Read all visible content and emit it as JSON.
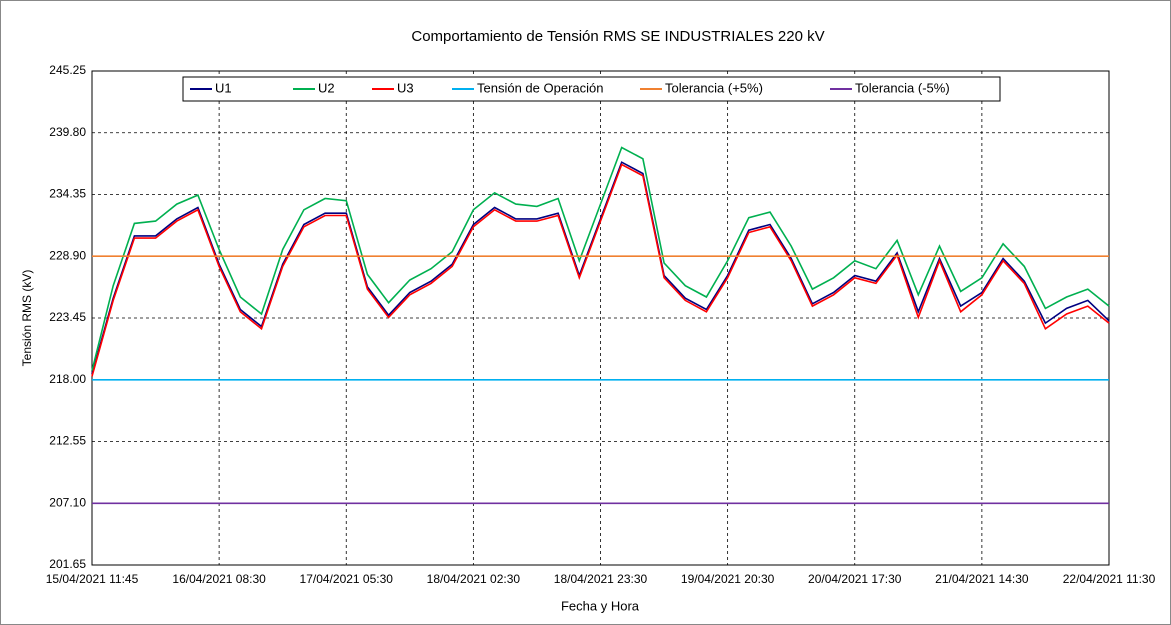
{
  "chart_data": {
    "type": "line",
    "title": "Comportamiento de Tensión RMS  SE INDUSTRIALES 220 kV",
    "x_label": "Fecha y Hora",
    "y_label": "Tensión RMS (kV)",
    "categories": [
      "15/04/2021 11:45",
      null,
      null,
      null,
      null,
      null,
      "16/04/2021 08:30",
      null,
      null,
      null,
      null,
      null,
      "17/04/2021 05:30",
      null,
      null,
      null,
      null,
      null,
      "18/04/2021 02:30",
      null,
      null,
      null,
      null,
      null,
      "18/04/2021 23:30",
      null,
      null,
      null,
      null,
      null,
      "19/04/2021 20:30",
      null,
      null,
      null,
      null,
      null,
      "20/04/2021 17:30",
      null,
      null,
      null,
      null,
      null,
      "21/04/2021 14:30",
      null,
      null,
      null,
      null,
      null,
      "22/04/2021 11:30"
    ],
    "ylim": [
      201.65,
      245.25
    ],
    "yticks": [
      201.65,
      {
        "value": 207.1,
        "label": "207.10"
      },
      212.55,
      {
        "value": 218,
        "label": "218.00"
      },
      223.45,
      {
        "value": 228.9,
        "label": "228.90"
      },
      234.35,
      {
        "value": 239.8,
        "label": "239.80"
      },
      245.25
    ],
    "grid": true,
    "legend": "top",
    "series": [
      {
        "name": "U1",
        "color": "#000080",
        "values": [
          218.5,
          225.2,
          230.7,
          230.7,
          232.2,
          233.2,
          228.2,
          224.2,
          222.7,
          228.2,
          231.7,
          232.7,
          232.7,
          226.2,
          223.7,
          225.7,
          226.7,
          228.2,
          231.7,
          233.2,
          232.2,
          232.2,
          232.7,
          227.2,
          232.2,
          237.2,
          236.2,
          227.2,
          225.2,
          224.2,
          227.2,
          231.2,
          231.7,
          228.7,
          224.7,
          225.7,
          227.2,
          226.7,
          229.2,
          224,
          228.7,
          224.5,
          225.7,
          228.7,
          226.7,
          223,
          224.3,
          225,
          223.2
        ]
      },
      {
        "name": "U2",
        "color": "#00b050",
        "values": [
          218.8,
          226.3,
          231.8,
          232,
          233.5,
          234.3,
          229.5,
          225.3,
          223.8,
          229.5,
          233,
          234,
          233.8,
          227.3,
          224.8,
          226.8,
          227.8,
          229.3,
          233,
          234.5,
          233.5,
          233.3,
          234,
          228.5,
          233.5,
          238.5,
          237.5,
          228.3,
          226.3,
          225.3,
          228.5,
          232.3,
          232.8,
          229.8,
          226,
          227,
          228.5,
          227.8,
          230.3,
          225.5,
          229.8,
          225.8,
          227,
          230,
          228,
          224.3,
          225.3,
          226,
          224.5
        ]
      },
      {
        "name": "U3",
        "color": "#ff0000",
        "values": [
          218.3,
          225,
          230.5,
          230.5,
          232,
          233,
          228,
          224,
          222.5,
          228,
          231.5,
          232.5,
          232.5,
          226,
          223.5,
          225.5,
          226.5,
          228,
          231.5,
          233,
          232,
          232,
          232.5,
          227,
          232,
          237,
          236,
          227,
          225,
          224,
          227,
          231,
          231.5,
          228.5,
          224.5,
          225.5,
          227,
          226.5,
          229,
          223.5,
          228.5,
          224,
          225.5,
          228.5,
          226.5,
          222.5,
          223.8,
          224.5,
          223
        ]
      },
      {
        "name": "Tensión de Operación",
        "color": "#00b0f0",
        "values": [
          218,
          218,
          218,
          218,
          218,
          218,
          218,
          218,
          218,
          218,
          218,
          218,
          218,
          218,
          218,
          218,
          218,
          218,
          218,
          218,
          218,
          218,
          218,
          218,
          218,
          218,
          218,
          218,
          218,
          218,
          218,
          218,
          218,
          218,
          218,
          218,
          218,
          218,
          218,
          218,
          218,
          218,
          218,
          218,
          218,
          218,
          218,
          218,
          218
        ]
      },
      {
        "name": "Tolerancia (+5%)",
        "color": "#f08030",
        "values": [
          228.9,
          228.9,
          228.9,
          228.9,
          228.9,
          228.9,
          228.9,
          228.9,
          228.9,
          228.9,
          228.9,
          228.9,
          228.9,
          228.9,
          228.9,
          228.9,
          228.9,
          228.9,
          228.9,
          228.9,
          228.9,
          228.9,
          228.9,
          228.9,
          228.9,
          228.9,
          228.9,
          228.9,
          228.9,
          228.9,
          228.9,
          228.9,
          228.9,
          228.9,
          228.9,
          228.9,
          228.9,
          228.9,
          228.9,
          228.9,
          228.9,
          228.9,
          228.9,
          228.9,
          228.9,
          228.9,
          228.9,
          228.9,
          228.9
        ]
      },
      {
        "name": "Tolerancia (-5%)",
        "color": "#7030a0",
        "values": [
          207.1,
          207.1,
          207.1,
          207.1,
          207.1,
          207.1,
          207.1,
          207.1,
          207.1,
          207.1,
          207.1,
          207.1,
          207.1,
          207.1,
          207.1,
          207.1,
          207.1,
          207.1,
          207.1,
          207.1,
          207.1,
          207.1,
          207.1,
          207.1,
          207.1,
          207.1,
          207.1,
          207.1,
          207.1,
          207.1,
          207.1,
          207.1,
          207.1,
          207.1,
          207.1,
          207.1,
          207.1,
          207.1,
          207.1,
          207.1,
          207.1,
          207.1,
          207.1,
          207.1,
          207.1,
          207.1,
          207.1,
          207.1,
          207.1
        ]
      }
    ]
  }
}
